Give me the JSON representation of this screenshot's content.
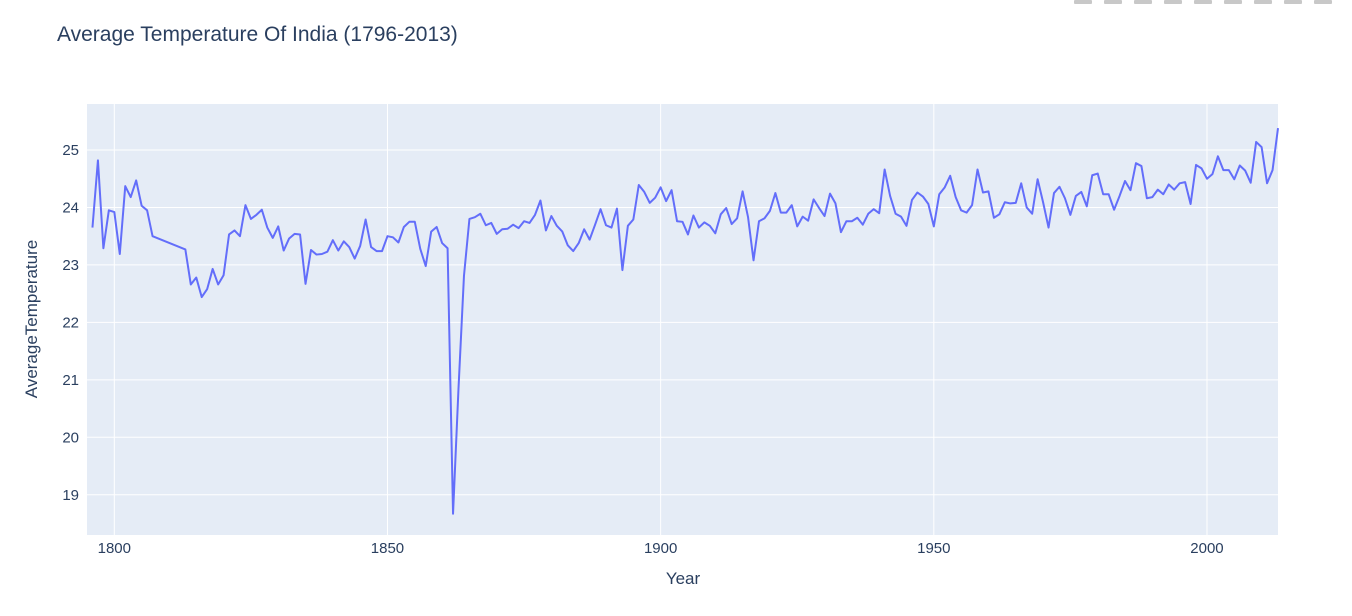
{
  "modebar": {
    "buttons": [
      "camera-icon",
      "zoom-icon",
      "pan-icon",
      "zoom-in-icon",
      "zoom-out-icon",
      "autoscale-icon",
      "reset-axes-icon",
      "spike-icon",
      "plotly-logo-icon"
    ]
  },
  "colors": {
    "plot_bg": "#e5ecf6",
    "line": "#636efa",
    "grid": "#ffffff",
    "text": "#2a3f5f"
  },
  "chart_data": {
    "type": "line",
    "title": "Average Temperature Of India (1796-2013)",
    "xlabel": "Year",
    "ylabel": "AverageTemperature",
    "xlim": [
      1795,
      2013
    ],
    "ylim": [
      18.3,
      25.8
    ],
    "x_ticks": [
      1800,
      1850,
      1900,
      1950,
      2000
    ],
    "y_ticks": [
      19,
      20,
      21,
      22,
      23,
      24,
      25
    ],
    "grid": true,
    "legend": "none",
    "series": [
      {
        "x": [
          1796,
          1797,
          1798,
          1799,
          1800,
          1801,
          1802,
          1803,
          1804,
          1805,
          1806,
          1807,
          1813,
          1814,
          1815,
          1816,
          1817,
          1818,
          1819,
          1820,
          1821,
          1822,
          1823,
          1824,
          1825,
          1826,
          1827,
          1828,
          1829,
          1830,
          1831,
          1832,
          1833,
          1834,
          1835,
          1836,
          1837,
          1838,
          1839,
          1840,
          1841,
          1842,
          1843,
          1844,
          1845,
          1846,
          1847,
          1848,
          1849,
          1850,
          1851,
          1852,
          1853,
          1854,
          1855,
          1856,
          1857,
          1858,
          1859,
          1860,
          1861,
          1862,
          1863,
          1864,
          1865,
          1866,
          1867,
          1868,
          1869,
          1870,
          1871,
          1872,
          1873,
          1874,
          1875,
          1876,
          1877,
          1878,
          1879,
          1880,
          1881,
          1882,
          1883,
          1884,
          1885,
          1886,
          1887,
          1888,
          1889,
          1890,
          1891,
          1892,
          1893,
          1894,
          1895,
          1896,
          1897,
          1898,
          1899,
          1900,
          1901,
          1902,
          1903,
          1904,
          1905,
          1906,
          1907,
          1908,
          1909,
          1910,
          1911,
          1912,
          1913,
          1914,
          1915,
          1916,
          1917,
          1918,
          1919,
          1920,
          1921,
          1922,
          1923,
          1924,
          1925,
          1926,
          1927,
          1928,
          1929,
          1930,
          1931,
          1932,
          1933,
          1934,
          1935,
          1936,
          1937,
          1938,
          1939,
          1940,
          1941,
          1942,
          1943,
          1944,
          1945,
          1946,
          1947,
          1948,
          1949,
          1950,
          1951,
          1952,
          1953,
          1954,
          1955,
          1956,
          1957,
          1958,
          1959,
          1960,
          1961,
          1962,
          1963,
          1964,
          1965,
          1966,
          1967,
          1968,
          1969,
          1970,
          1971,
          1972,
          1973,
          1974,
          1975,
          1976,
          1977,
          1978,
          1979,
          1980,
          1981,
          1982,
          1983,
          1984,
          1985,
          1986,
          1987,
          1988,
          1989,
          1990,
          1991,
          1992,
          1993,
          1994,
          1995,
          1996,
          1997,
          1998,
          1999,
          2000,
          2001,
          2002,
          2003,
          2004,
          2005,
          2006,
          2007,
          2008,
          2009,
          2010,
          2011,
          2012,
          2013
        ],
        "y": [
          23.65,
          24.82,
          23.29,
          23.95,
          23.92,
          23.19,
          24.37,
          24.18,
          24.47,
          24.03,
          23.95,
          23.5,
          23.27,
          22.66,
          22.78,
          22.44,
          22.58,
          22.93,
          22.66,
          22.82,
          23.53,
          23.6,
          23.5,
          24.04,
          23.8,
          23.87,
          23.96,
          23.65,
          23.47,
          23.67,
          23.25,
          23.46,
          23.54,
          23.53,
          22.67,
          23.26,
          23.18,
          23.19,
          23.23,
          23.43,
          23.25,
          23.41,
          23.31,
          23.11,
          23.33,
          23.79,
          23.31,
          23.24,
          23.24,
          23.5,
          23.48,
          23.39,
          23.66,
          23.75,
          23.75,
          23.28,
          22.98,
          23.58,
          23.66,
          23.38,
          23.29,
          18.67,
          20.85,
          22.81,
          23.8,
          23.83,
          23.89,
          23.69,
          23.73,
          23.54,
          23.62,
          23.63,
          23.7,
          23.64,
          23.76,
          23.73,
          23.87,
          24.12,
          23.6,
          23.85,
          23.68,
          23.58,
          23.34,
          23.24,
          23.38,
          23.62,
          23.44,
          23.7,
          23.97,
          23.69,
          23.65,
          23.98,
          22.91,
          23.68,
          23.79,
          24.39,
          24.27,
          24.08,
          24.17,
          24.35,
          24.11,
          24.3,
          23.76,
          23.75,
          23.53,
          23.86,
          23.65,
          23.74,
          23.68,
          23.55,
          23.88,
          23.99,
          23.71,
          23.81,
          24.28,
          23.83,
          23.08,
          23.76,
          23.81,
          23.94,
          24.25,
          23.91,
          23.91,
          24.04,
          23.67,
          23.84,
          23.77,
          24.14,
          23.99,
          23.85,
          24.24,
          24.07,
          23.57,
          23.76,
          23.76,
          23.82,
          23.7,
          23.89,
          23.97,
          23.9,
          24.66,
          24.2,
          23.89,
          23.84,
          23.68,
          24.13,
          24.26,
          24.19,
          24.06,
          23.67,
          24.23,
          24.35,
          24.55,
          24.18,
          23.95,
          23.91,
          24.04,
          24.66,
          24.26,
          24.28,
          23.82,
          23.88,
          24.09,
          24.07,
          24.08,
          24.42,
          24.0,
          23.89,
          24.49,
          24.09,
          23.65,
          24.25,
          24.36,
          24.16,
          23.87,
          24.2,
          24.27,
          24.02,
          24.56,
          24.59,
          24.23,
          24.23,
          23.96,
          24.2,
          24.46,
          24.3,
          24.77,
          24.72,
          24.16,
          24.18,
          24.31,
          24.23,
          24.4,
          24.31,
          24.42,
          24.44,
          24.06,
          24.74,
          24.68,
          24.5,
          24.58,
          24.89,
          24.65,
          24.65,
          24.49,
          24.73,
          24.64,
          24.43,
          25.14,
          25.05,
          24.42,
          24.65,
          25.38
        ]
      }
    ]
  }
}
